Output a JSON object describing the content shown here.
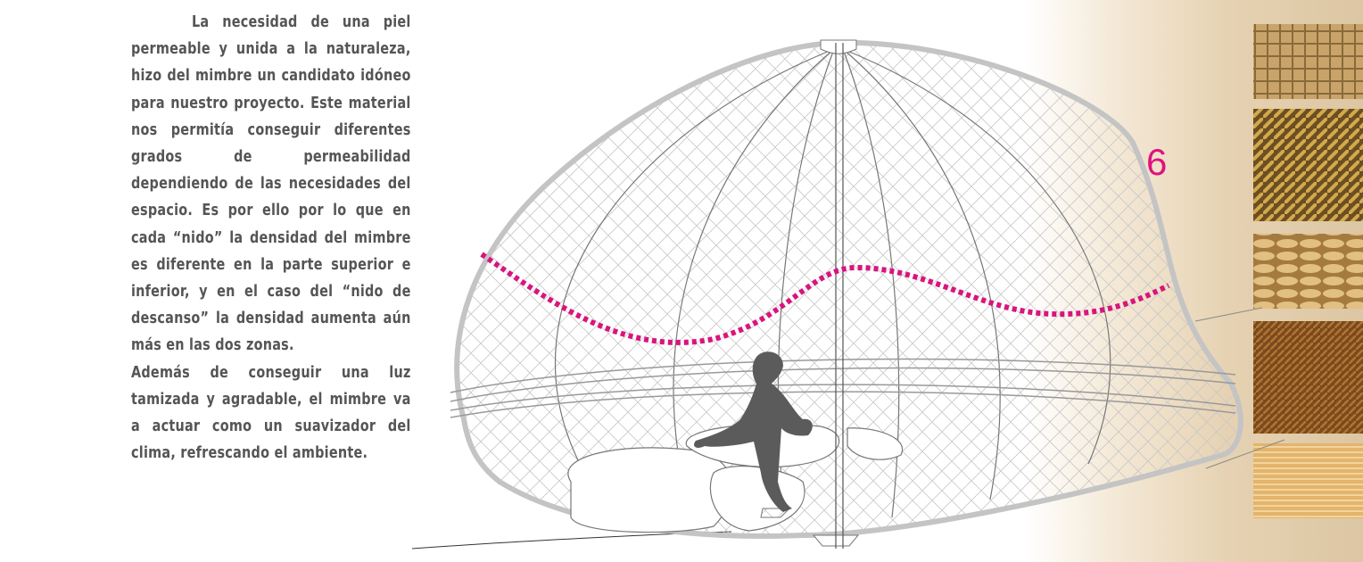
{
  "text": {
    "paragraphs": [
      "La necesidad de una piel permeable y  unida a la naturaleza, hizo del mimbre un candidato idóneo para nuestro proyecto. Este material nos permitía conseguir diferentes grados de permeabilidad dependiendo de las necesidades del espacio. Es por ello por lo que en cada “nido” la  densidad del mimbre es diferente en la parte superior e inferior, y en el caso del “nido de descanso” la densidad aumenta aún más en las dos zonas.",
      "Además de conseguir una luz tamizada y agradable, el mimbre va a actuar como un suavizador del clima, refrescando el ambiente."
    ]
  },
  "figure": {
    "number": "6"
  }
}
